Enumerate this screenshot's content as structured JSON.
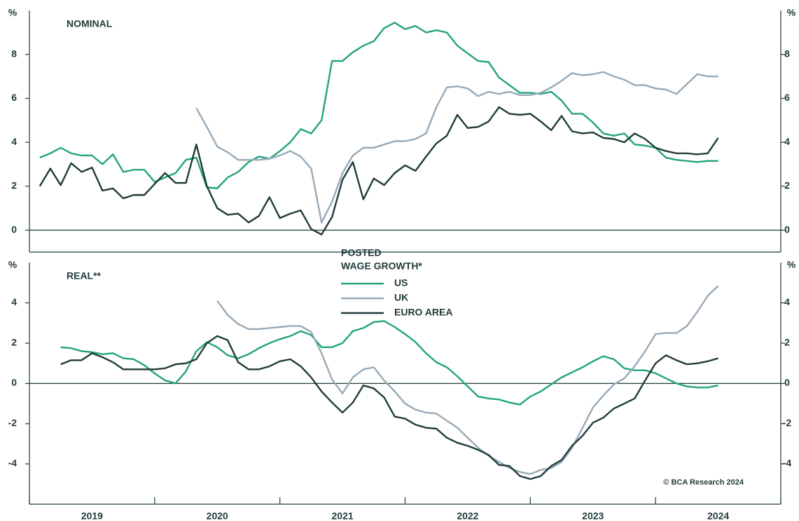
{
  "chart_data": [
    {
      "type": "line",
      "title": "NOMINAL",
      "y_unit": "%",
      "x": [
        2019.083,
        2019.167,
        2019.25,
        2019.333,
        2019.417,
        2019.5,
        2019.583,
        2019.667,
        2019.75,
        2019.833,
        2019.917,
        2020,
        2020.083,
        2020.167,
        2020.25,
        2020.333,
        2020.417,
        2020.5,
        2020.583,
        2020.667,
        2020.75,
        2020.833,
        2020.917,
        2021,
        2021.083,
        2021.167,
        2021.25,
        2021.333,
        2021.417,
        2021.5,
        2021.583,
        2021.667,
        2021.75,
        2021.833,
        2021.917,
        2022,
        2022.083,
        2022.167,
        2022.25,
        2022.333,
        2022.417,
        2022.5,
        2022.583,
        2022.667,
        2022.75,
        2022.833,
        2022.917,
        2023,
        2023.083,
        2023.167,
        2023.25,
        2023.333,
        2023.417,
        2023.5,
        2023.583,
        2023.667,
        2023.75,
        2023.833,
        2023.917,
        2024,
        2024.083,
        2024.167,
        2024.25,
        2024.333,
        2024.417,
        2024.5
      ],
      "xlim": [
        2019,
        2025
      ],
      "ylim": [
        -1,
        10
      ],
      "yticks": [
        0,
        2,
        4,
        6,
        8
      ],
      "series": [
        {
          "name": "US",
          "color": "#22a37b",
          "values": [
            3.3,
            3.5,
            3.75,
            3.5,
            3.4,
            3.4,
            3.0,
            3.45,
            2.65,
            2.75,
            2.75,
            2.2,
            2.4,
            2.6,
            3.2,
            3.3,
            1.95,
            1.9,
            2.4,
            2.65,
            3.1,
            3.35,
            3.25,
            3.6,
            4.0,
            4.6,
            4.4,
            5.0,
            7.7,
            7.7,
            8.1,
            8.4,
            8.6,
            9.2,
            9.45,
            9.15,
            9.3,
            9.0,
            9.1,
            9.0,
            8.4,
            8.05,
            7.7,
            7.65,
            6.95,
            6.6,
            6.25,
            6.25,
            6.2,
            6.3,
            5.9,
            5.3,
            5.3,
            4.9,
            4.4,
            4.3,
            4.4,
            3.9,
            3.85,
            3.75,
            3.3,
            3.2,
            3.15,
            3.1,
            3.15,
            3.15
          ]
        },
        {
          "name": "UK",
          "color": "#97a9b8",
          "values": [
            null,
            null,
            null,
            null,
            null,
            null,
            null,
            null,
            null,
            null,
            null,
            null,
            null,
            null,
            null,
            5.55,
            4.7,
            3.8,
            3.55,
            3.2,
            3.2,
            3.2,
            3.25,
            3.4,
            3.6,
            3.35,
            2.8,
            0.35,
            1.3,
            2.6,
            3.4,
            3.75,
            3.75,
            3.9,
            4.05,
            4.05,
            4.15,
            4.4,
            5.6,
            6.5,
            6.55,
            6.45,
            6.1,
            6.3,
            6.2,
            6.3,
            6.15,
            6.15,
            6.25,
            6.5,
            6.8,
            7.15,
            7.05,
            7.1,
            7.2,
            7.0,
            6.85,
            6.6,
            6.6,
            6.45,
            6.4,
            6.2,
            6.65,
            7.1,
            7.0,
            7.0
          ]
        },
        {
          "name": "EURO AREA",
          "color": "#1f3b3b",
          "values": [
            2.0,
            2.8,
            2.05,
            3.05,
            2.65,
            2.85,
            1.8,
            1.9,
            1.45,
            1.6,
            1.6,
            2.1,
            2.6,
            2.15,
            2.15,
            3.9,
            2.0,
            1.0,
            0.7,
            0.75,
            0.35,
            0.65,
            1.5,
            0.55,
            0.75,
            0.9,
            0.05,
            -0.2,
            0.6,
            2.3,
            3.1,
            1.4,
            2.35,
            2.05,
            2.6,
            2.95,
            2.7,
            3.35,
            3.95,
            4.3,
            5.25,
            4.65,
            4.7,
            4.95,
            5.6,
            5.3,
            5.25,
            5.3,
            4.95,
            4.55,
            5.2,
            4.5,
            4.4,
            4.45,
            4.2,
            4.15,
            4.0,
            4.4,
            4.15,
            3.75,
            3.6,
            3.5,
            3.5,
            3.45,
            3.5,
            4.2
          ]
        }
      ]
    },
    {
      "type": "line",
      "title": "REAL**",
      "y_unit": "%",
      "x": [
        2019.083,
        2019.167,
        2019.25,
        2019.333,
        2019.417,
        2019.5,
        2019.583,
        2019.667,
        2019.75,
        2019.833,
        2019.917,
        2020,
        2020.083,
        2020.167,
        2020.25,
        2020.333,
        2020.417,
        2020.5,
        2020.583,
        2020.667,
        2020.75,
        2020.833,
        2020.917,
        2021,
        2021.083,
        2021.167,
        2021.25,
        2021.333,
        2021.417,
        2021.5,
        2021.583,
        2021.667,
        2021.75,
        2021.833,
        2021.917,
        2022,
        2022.083,
        2022.167,
        2022.25,
        2022.333,
        2022.417,
        2022.5,
        2022.583,
        2022.667,
        2022.75,
        2022.833,
        2022.917,
        2023,
        2023.083,
        2023.167,
        2023.25,
        2023.333,
        2023.417,
        2023.5,
        2023.583,
        2023.667,
        2023.75,
        2023.833,
        2023.917,
        2024,
        2024.083,
        2024.167,
        2024.25,
        2024.333,
        2024.417,
        2024.5
      ],
      "xlim": [
        2019,
        2025
      ],
      "ylim": [
        -6,
        6
      ],
      "yticks": [
        -4,
        -2,
        0,
        2,
        4
      ],
      "xticks": [
        2019,
        2020,
        2021,
        2022,
        2023,
        2024,
        2025
      ],
      "x_labels": [
        "2019",
        "2020",
        "2021",
        "2022",
        "2023",
        "2024"
      ],
      "legend_title": [
        "POSTED",
        "WAGE GROWTH*"
      ],
      "annotation": "© BCA Research 2024",
      "series": [
        {
          "name": "US",
          "color": "#22a37b",
          "values": [
            null,
            null,
            1.8,
            1.75,
            1.6,
            1.55,
            1.45,
            1.5,
            1.25,
            1.2,
            0.9,
            0.5,
            0.15,
            0.0,
            0.6,
            1.6,
            2.05,
            1.8,
            1.4,
            1.25,
            1.45,
            1.75,
            2.0,
            2.2,
            2.35,
            2.6,
            2.4,
            1.8,
            1.8,
            2.0,
            2.6,
            2.75,
            3.05,
            3.1,
            2.8,
            2.45,
            2.05,
            1.5,
            1.05,
            0.8,
            0.35,
            -0.15,
            -0.65,
            -0.75,
            -0.8,
            -0.95,
            -1.05,
            -0.65,
            -0.4,
            -0.05,
            0.3,
            0.55,
            0.8,
            1.1,
            1.35,
            1.2,
            0.75,
            0.65,
            0.65,
            0.5,
            0.25,
            0.0,
            -0.15,
            -0.2,
            -0.2,
            -0.1
          ]
        },
        {
          "name": "UK",
          "color": "#97a9b8",
          "values": [
            null,
            null,
            null,
            null,
            null,
            null,
            null,
            null,
            null,
            null,
            null,
            null,
            null,
            null,
            null,
            null,
            null,
            4.1,
            3.4,
            2.95,
            2.7,
            2.7,
            2.75,
            2.8,
            2.85,
            2.85,
            2.55,
            1.5,
            0.2,
            -0.5,
            0.3,
            0.7,
            0.8,
            0.15,
            -0.4,
            -1.0,
            -1.3,
            -1.45,
            -1.5,
            -1.85,
            -2.2,
            -2.7,
            -3.2,
            -3.6,
            -3.9,
            -4.2,
            -4.4,
            -4.5,
            -4.3,
            -4.2,
            -3.9,
            -3.2,
            -2.2,
            -1.2,
            -0.6,
            -0.05,
            0.25,
            0.85,
            1.6,
            2.45,
            2.5,
            2.5,
            2.85,
            3.55,
            4.35,
            4.85
          ]
        },
        {
          "name": "EURO AREA",
          "color": "#1f3b3b",
          "values": [
            null,
            null,
            0.95,
            1.15,
            1.15,
            1.5,
            1.3,
            1.05,
            0.7,
            0.7,
            0.7,
            0.7,
            0.75,
            0.95,
            1.0,
            1.2,
            2.0,
            2.35,
            2.15,
            1.05,
            0.7,
            0.7,
            0.85,
            1.1,
            1.2,
            0.85,
            0.3,
            -0.4,
            -0.95,
            -1.45,
            -0.95,
            -0.1,
            -0.25,
            -0.7,
            -1.65,
            -1.75,
            -2.05,
            -2.2,
            -2.25,
            -2.7,
            -2.95,
            -3.1,
            -3.3,
            -3.55,
            -4.05,
            -4.1,
            -4.6,
            -4.75,
            -4.6,
            -4.1,
            -3.8,
            -3.1,
            -2.6,
            -1.95,
            -1.7,
            -1.25,
            -1.0,
            -0.75,
            0.15,
            1.0,
            1.4,
            1.15,
            0.95,
            1.0,
            1.1,
            1.25
          ]
        }
      ]
    }
  ]
}
